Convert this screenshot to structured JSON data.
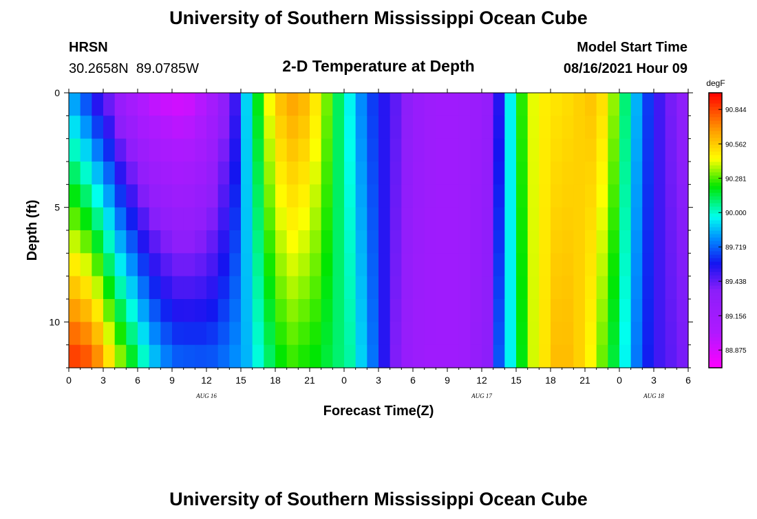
{
  "header": {
    "title": "University of Southern Mississippi Ocean Cube",
    "station": "HRSN",
    "coords": "30.2658N  89.0785W",
    "subtitle": "2-D Temperature at Depth",
    "model_label": "Model Start Time",
    "model_time": "08/16/2021 Hour 09"
  },
  "footer": {
    "title": "University of Southern Mississippi Ocean Cube"
  },
  "chart_data": {
    "type": "heatmap",
    "title": "2-D Temperature at Depth",
    "xlabel": "Forecast Time(Z)",
    "ylabel": "Depth (ft)",
    "xlim": [
      0,
      54
    ],
    "ylim": [
      12,
      0
    ],
    "x_ticks": [
      0,
      3,
      6,
      9,
      12,
      15,
      18,
      21,
      24,
      27,
      30,
      33,
      36,
      39,
      42,
      45,
      48,
      51,
      54
    ],
    "x_tick_labels": [
      "0",
      "3",
      "6",
      "9",
      "12",
      "15",
      "18",
      "21",
      "0",
      "3",
      "6",
      "9",
      "12",
      "15",
      "18",
      "21",
      "0",
      "3",
      "6"
    ],
    "y_ticks": [
      0,
      5,
      10
    ],
    "y_tick_labels": [
      "0",
      "5",
      "10"
    ],
    "date_labels": [
      {
        "x": 12,
        "text": "AUG 16"
      },
      {
        "x": 36,
        "text": "AUG 17"
      },
      {
        "x": 51,
        "text": "AUG 18"
      }
    ],
    "colorbar": {
      "unit": "degF",
      "min": 88.73,
      "max": 90.98,
      "levels": [
        88.875,
        89.156,
        89.438,
        89.719,
        90.0,
        90.281,
        90.562,
        90.844
      ],
      "level_labels": [
        "88.875",
        "89.156",
        "89.438",
        "89.719",
        "90.000",
        "90.281",
        "90.562",
        "90.844"
      ]
    },
    "depths_ft": [
      0,
      1,
      2,
      3,
      4,
      5,
      6,
      7,
      8,
      9,
      10,
      11,
      12
    ],
    "surface_series": {
      "time_h": [
        0,
        1,
        2,
        3,
        4,
        5,
        6,
        7,
        8,
        9,
        10,
        11,
        12,
        13,
        14,
        15,
        16,
        17,
        18,
        19,
        20,
        21,
        22,
        23,
        24,
        25,
        26,
        27,
        28,
        29,
        30,
        31,
        32,
        33,
        34,
        35,
        36,
        37,
        38,
        39,
        40,
        41,
        42,
        43,
        44,
        45,
        46,
        47,
        48,
        49,
        50,
        51,
        52,
        53,
        54
      ],
      "temp_degF": [
        89.78,
        89.65,
        89.5,
        89.38,
        89.2,
        89.08,
        88.98,
        88.92,
        88.89,
        88.87,
        88.89,
        88.97,
        89.1,
        89.3,
        89.5,
        89.9,
        90.2,
        90.45,
        90.6,
        90.66,
        90.62,
        90.5,
        90.32,
        90.12,
        89.95,
        89.78,
        89.65,
        89.55,
        89.45,
        89.35,
        89.25,
        89.2,
        89.18,
        89.18,
        89.2,
        89.22,
        89.28,
        89.55,
        89.95,
        90.25,
        90.42,
        90.48,
        90.5,
        90.52,
        90.55,
        90.58,
        90.52,
        90.35,
        90.1,
        89.85,
        89.65,
        89.5,
        89.4,
        89.35,
        89.32
      ]
    },
    "bottom_series": {
      "time_h": [
        0,
        1,
        2,
        3,
        4,
        5,
        6,
        7,
        8,
        9,
        10,
        11,
        12,
        13,
        14,
        15,
        16,
        17,
        18,
        19,
        20,
        21,
        22,
        23,
        24,
        25,
        26,
        27,
        28,
        29,
        30,
        31,
        32,
        33,
        34,
        35,
        36,
        37,
        38,
        39,
        40,
        41,
        42,
        43,
        44,
        45,
        46,
        47,
        48,
        49,
        50,
        51,
        52,
        53,
        54
      ],
      "temp_degF": [
        90.9,
        90.86,
        90.75,
        90.55,
        90.38,
        90.22,
        90.05,
        89.9,
        89.8,
        89.74,
        89.73,
        89.72,
        89.72,
        89.75,
        89.8,
        89.85,
        89.98,
        90.1,
        90.2,
        90.25,
        90.22,
        90.2,
        90.15,
        90.1,
        90.05,
        89.9,
        89.75,
        89.55,
        89.38,
        89.25,
        89.2,
        89.18,
        89.18,
        89.18,
        89.2,
        89.28,
        89.35,
        89.7,
        89.95,
        90.2,
        90.4,
        90.5,
        90.6,
        90.6,
        90.55,
        90.45,
        90.3,
        90.15,
        89.95,
        89.75,
        89.6,
        89.5,
        89.45,
        89.4,
        89.35
      ]
    }
  }
}
